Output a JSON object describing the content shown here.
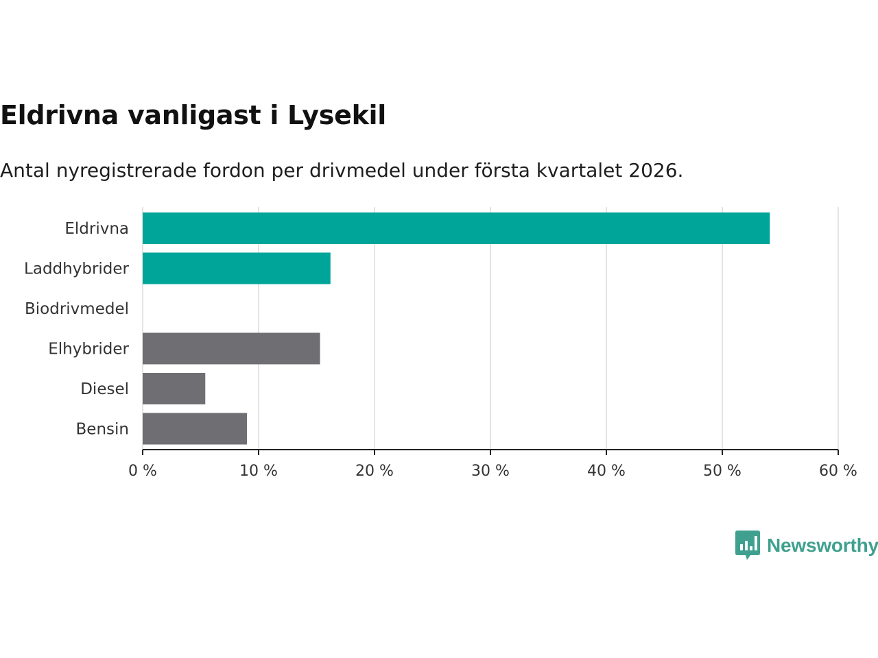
{
  "chart_data": {
    "type": "bar",
    "orientation": "horizontal",
    "title": "Eldrivna vanligast i Lysekil",
    "subtitle": "Antal nyregistrerade fordon per drivmedel under första kvartalet 2026.",
    "categories": [
      "Eldrivna",
      "Laddhybrider",
      "Biodrivmedel",
      "Elhybrider",
      "Diesel",
      "Bensin"
    ],
    "values": [
      54.1,
      16.2,
      0,
      15.3,
      5.4,
      9.0
    ],
    "colors": [
      "#00a59a",
      "#00a59a",
      "#00a59a",
      "#6f6e73",
      "#6f6e73",
      "#6f6e73"
    ],
    "xlim": [
      0,
      60
    ],
    "xticks": [
      0,
      10,
      20,
      30,
      40,
      50,
      60
    ],
    "tick_labels": [
      "0 %",
      "10 %",
      "20 %",
      "30 %",
      "40 %",
      "50 %",
      "60 %"
    ],
    "grid": true,
    "unit": "%"
  },
  "brand": {
    "name": "Newsworthy",
    "color": "#3fa08f",
    "icon": "bar-chart-speech-bubble-icon"
  }
}
